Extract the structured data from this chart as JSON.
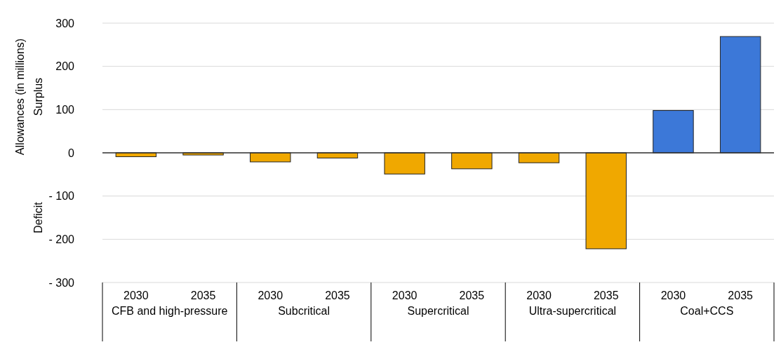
{
  "chart_data": {
    "type": "bar",
    "ylabel": "Allowances (in millions)",
    "categories": [
      "2030",
      "2035",
      "2030",
      "2035",
      "2030",
      "2035",
      "2030",
      "2035",
      "2030",
      "2035"
    ],
    "values": [
      -9,
      -5,
      -21,
      -12,
      -49,
      -37,
      -23,
      -222,
      98,
      269
    ],
    "colors": [
      "#f0a800",
      "#f0a800",
      "#f0a800",
      "#f0a800",
      "#f0a800",
      "#f0a800",
      "#f0a800",
      "#f0a800",
      "#3c78d8",
      "#3c78d8"
    ],
    "ylim": [
      -300,
      300
    ],
    "yticks": [
      {
        "value": -300,
        "label": "- 300"
      },
      {
        "value": -200,
        "label": "- 200"
      },
      {
        "value": -100,
        "label": "- 100"
      },
      0,
      100,
      200,
      300
    ],
    "grid": "y",
    "annotations": [
      "CFB and high-pressure",
      "Subcritical",
      "Supercritical",
      "Ultra-supercritical",
      "Coal+CCS",
      "Surplus",
      "Deficit"
    ]
  }
}
